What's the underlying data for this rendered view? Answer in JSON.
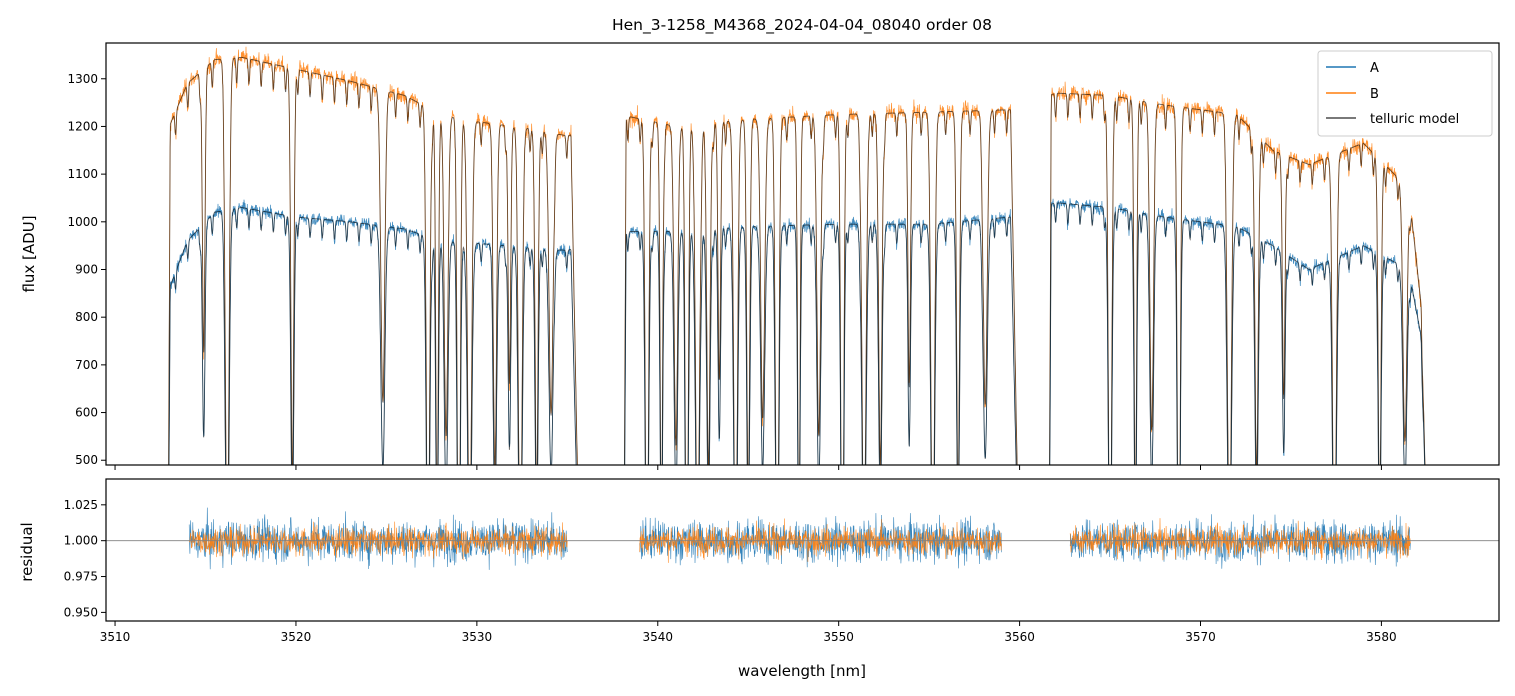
{
  "chart_data": [
    {
      "type": "line",
      "panel": "top",
      "title": "Hen_3-1258_M4368_2024-04-04_08040  order 08",
      "xlabel": "",
      "ylabel": "flux [ADU]",
      "xlim": [
        3509.5,
        3586.5
      ],
      "ylim": [
        490,
        1375
      ],
      "xticks": [
        3510,
        3520,
        3530,
        3540,
        3550,
        3560,
        3570,
        3580
      ],
      "yticks": [
        500,
        600,
        700,
        800,
        900,
        1000,
        1100,
        1200,
        1300
      ],
      "ytick_labels": [
        "500",
        "600",
        "700",
        "800",
        "900",
        "1000",
        "1100",
        "1200",
        "1300"
      ],
      "legend": {
        "position": "top-right",
        "entries": [
          {
            "label": "A",
            "color": "#1f77b4"
          },
          {
            "label": "B",
            "color": "#ff7f0e"
          },
          {
            "label": "telluric model",
            "color": "#4d4d4d"
          }
        ]
      },
      "series": [
        {
          "name": "A",
          "color": "#1f77b4",
          "segments": [
            [
              3512.9,
              3535.8
            ],
            [
              3538.1,
              3560.1
            ],
            [
              3561.6,
              3582.8
            ]
          ],
          "x_anchor": [
            3513.0,
            3514.0,
            3515.5,
            3517.0,
            3520.0,
            3523.0,
            3526.0,
            3528.0,
            3530.0,
            3533.0,
            3535.0,
            3538.5,
            3541.0,
            3545.0,
            3550.0,
            3555.0,
            3559.5,
            3562.0,
            3565.0,
            3568.0,
            3572.0,
            3574.0,
            3576.0,
            3579.0,
            3581.5,
            3582.5
          ],
          "y_anchor": [
            860,
            960,
            1020,
            1030,
            1010,
            1000,
            985,
            960,
            955,
            945,
            940,
            980,
            980,
            990,
            995,
            995,
            1010,
            1040,
            1030,
            1010,
            990,
            950,
            900,
            950,
            900,
            700
          ]
        },
        {
          "name": "B",
          "color": "#ff7f0e",
          "segments": [
            [
              3512.9,
              3535.8
            ],
            [
              3538.1,
              3560.1
            ],
            [
              3561.6,
              3582.8
            ]
          ],
          "x_anchor": [
            3513.0,
            3514.0,
            3515.5,
            3517.0,
            3520.0,
            3523.0,
            3526.0,
            3528.0,
            3530.0,
            3533.0,
            3535.0,
            3538.5,
            3541.0,
            3545.0,
            3550.0,
            3555.0,
            3559.5,
            3562.0,
            3565.0,
            3568.0,
            3572.0,
            3574.0,
            3576.0,
            3579.0,
            3581.5,
            3582.5
          ],
          "y_anchor": [
            1200,
            1290,
            1340,
            1345,
            1320,
            1295,
            1265,
            1225,
            1210,
            1195,
            1180,
            1220,
            1200,
            1215,
            1225,
            1230,
            1235,
            1270,
            1265,
            1245,
            1225,
            1150,
            1120,
            1165,
            1070,
            720
          ]
        },
        {
          "name": "telluric model",
          "color": "#4d4d4d",
          "note": "smooth model tracing the continua of A and B with telluric absorption lines"
        }
      ],
      "telluric_lines_nm": [
        3514.9,
        3516.2,
        3519.8,
        3524.8,
        3527.3,
        3527.8,
        3528.3,
        3529.0,
        3529.6,
        3531.0,
        3531.8,
        3532.4,
        3533.3,
        3534.1,
        3539.4,
        3540.2,
        3541.0,
        3541.6,
        3542.2,
        3542.8,
        3543.4,
        3544.3,
        3545.0,
        3545.8,
        3546.6,
        3547.8,
        3548.9,
        3550.2,
        3551.4,
        3552.3,
        3553.9,
        3555.2,
        3556.6,
        3558.1,
        3565.0,
        3566.4,
        3567.3,
        3568.8,
        3571.6,
        3573.1,
        3574.6,
        3577.4,
        3579.9,
        3581.3
      ]
    },
    {
      "type": "line",
      "panel": "bottom",
      "title": "",
      "xlabel": "wavelength [nm]",
      "ylabel": "residual",
      "xlim": [
        3509.5,
        3586.5
      ],
      "ylim": [
        0.944,
        1.043
      ],
      "xticks": [
        3510,
        3520,
        3530,
        3540,
        3550,
        3560,
        3570,
        3580
      ],
      "xtick_labels": [
        "3510",
        "3520",
        "3530",
        "3540",
        "3550",
        "3560",
        "3570",
        "3580"
      ],
      "yticks": [
        0.95,
        0.975,
        1.0,
        1.025
      ],
      "ytick_labels": [
        "0.950",
        "0.975",
        "1.000",
        "1.025"
      ],
      "reference_line": 1.0,
      "series": [
        {
          "name": "A residual",
          "color": "#1f77b4",
          "segments": [
            [
              3514.1,
              3535.0
            ],
            [
              3539.0,
              3559.0
            ],
            [
              3562.8,
              3581.6
            ]
          ],
          "noise_sigma": 0.022
        },
        {
          "name": "B residual",
          "color": "#ff7f0e",
          "segments": [
            [
              3514.1,
              3535.0
            ],
            [
              3539.0,
              3559.0
            ],
            [
              3562.8,
              3581.6
            ]
          ],
          "noise_sigma": 0.015
        }
      ]
    }
  ]
}
